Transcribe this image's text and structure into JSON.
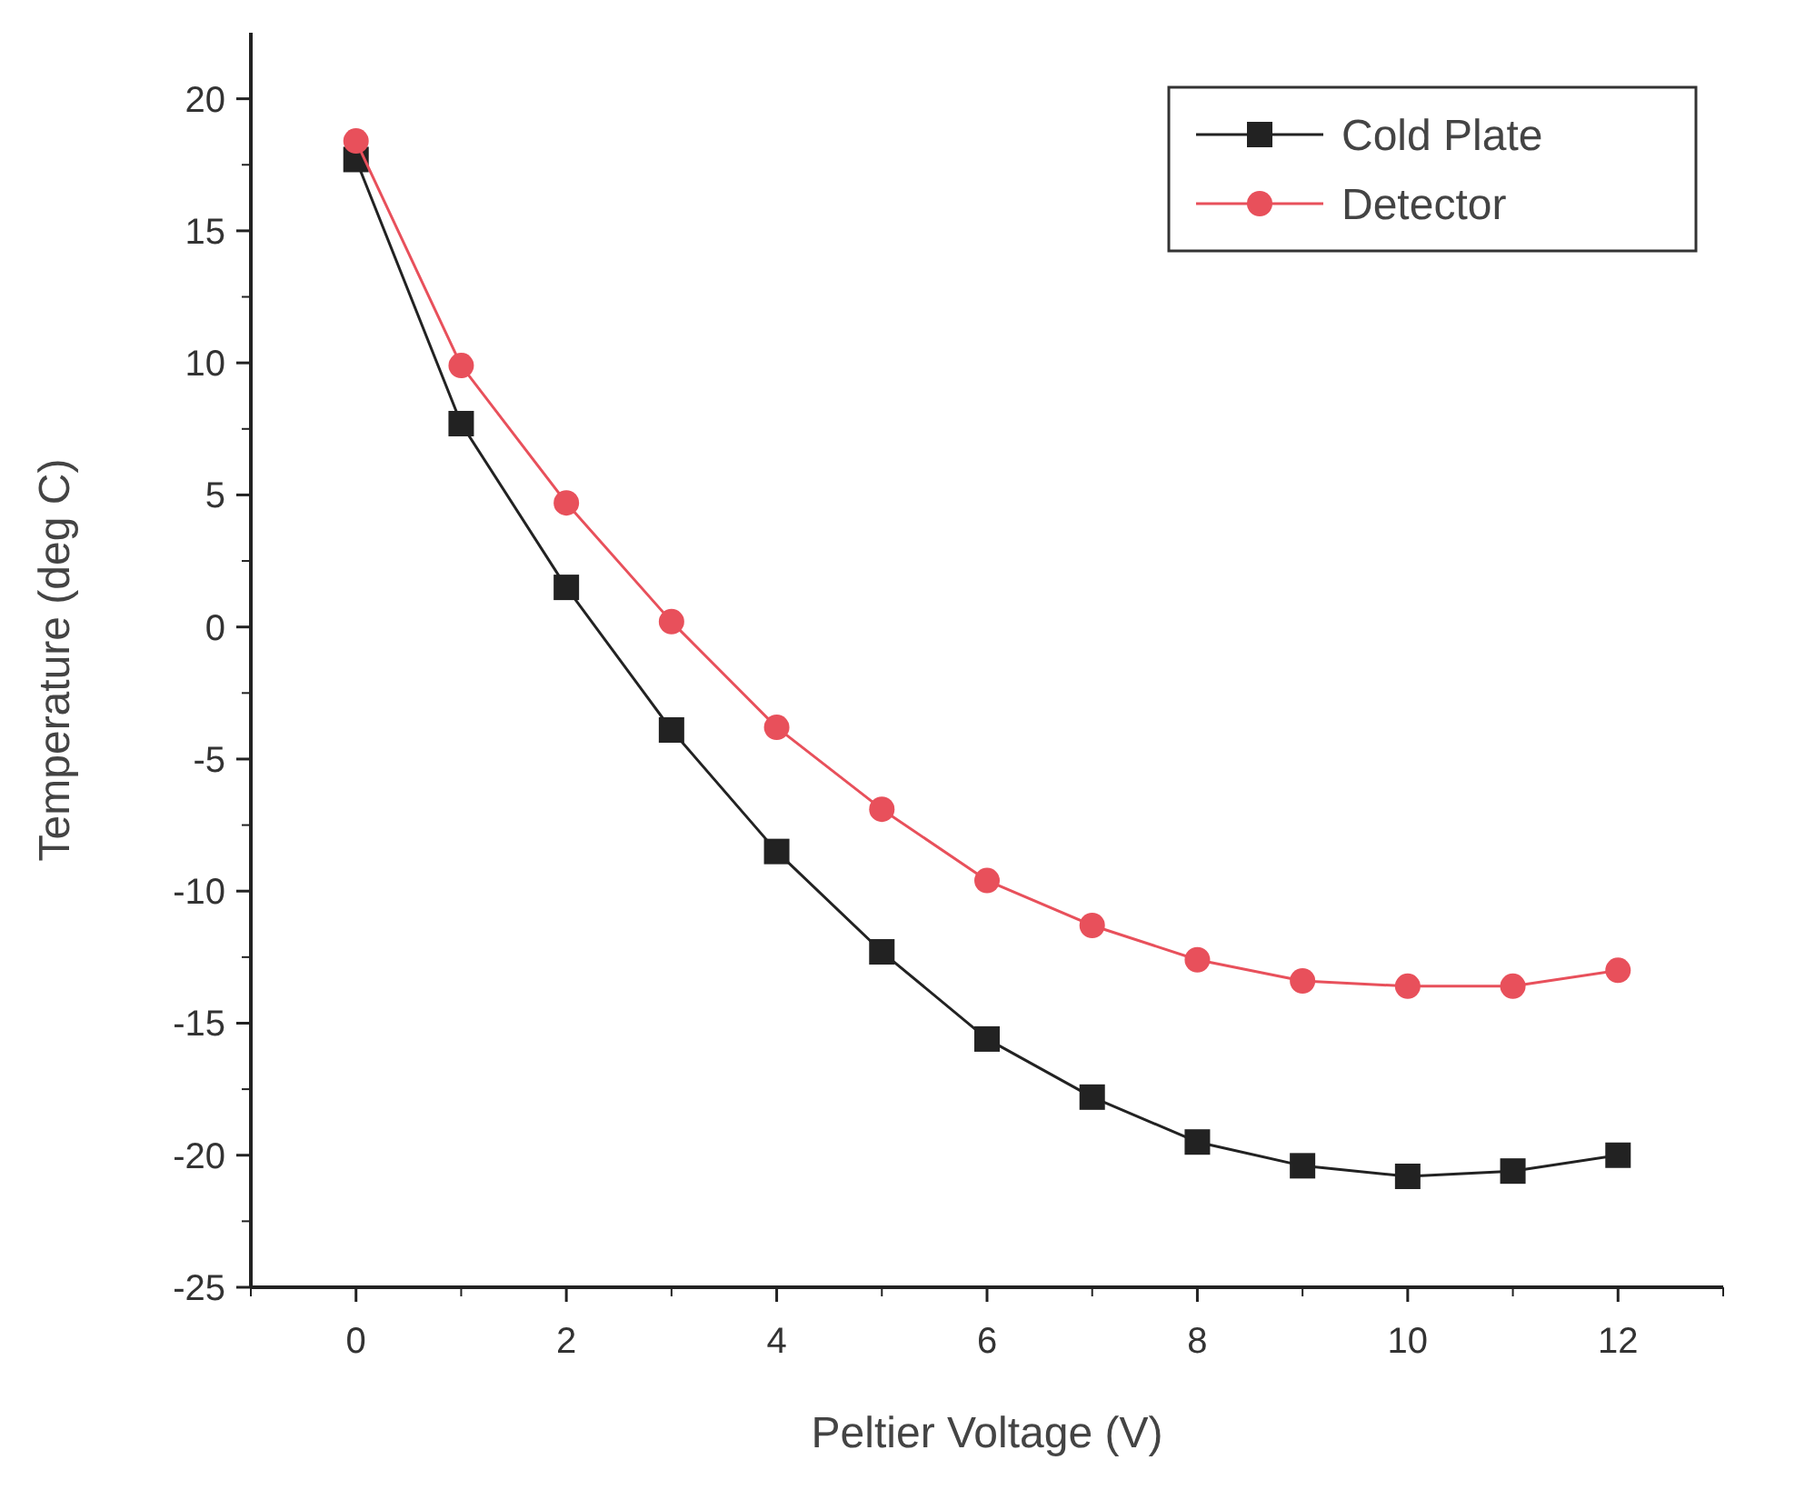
{
  "chart_data": {
    "type": "line",
    "xlabel": "Peltier Voltage (V)",
    "ylabel": "Temperature (deg C)",
    "x": [
      0,
      1,
      2,
      3,
      4,
      5,
      6,
      7,
      8,
      9,
      10,
      11,
      12
    ],
    "xlim": [
      -1,
      13
    ],
    "xticks": [
      0,
      2,
      4,
      6,
      8,
      10,
      12
    ],
    "ylim": [
      -25,
      22.5
    ],
    "yticks": [
      -25,
      -20,
      -15,
      -10,
      -5,
      0,
      5,
      10,
      15,
      20
    ],
    "grid": false,
    "legend": "top right",
    "line_style": "solid",
    "series": [
      {
        "name": "Cold Plate",
        "color": "#222222",
        "marker": "square",
        "values": [
          17.7,
          7.7,
          1.5,
          -3.9,
          -8.5,
          -12.3,
          -15.6,
          -17.8,
          -19.5,
          -20.4,
          -20.8,
          -20.6,
          -20.0
        ]
      },
      {
        "name": "Detector",
        "color": "#e8505b",
        "marker": "circle",
        "values": [
          18.4,
          9.9,
          4.7,
          0.2,
          -3.8,
          -6.9,
          -9.6,
          -11.3,
          -12.6,
          -13.4,
          -13.6,
          -13.6,
          -13.0
        ]
      }
    ]
  }
}
